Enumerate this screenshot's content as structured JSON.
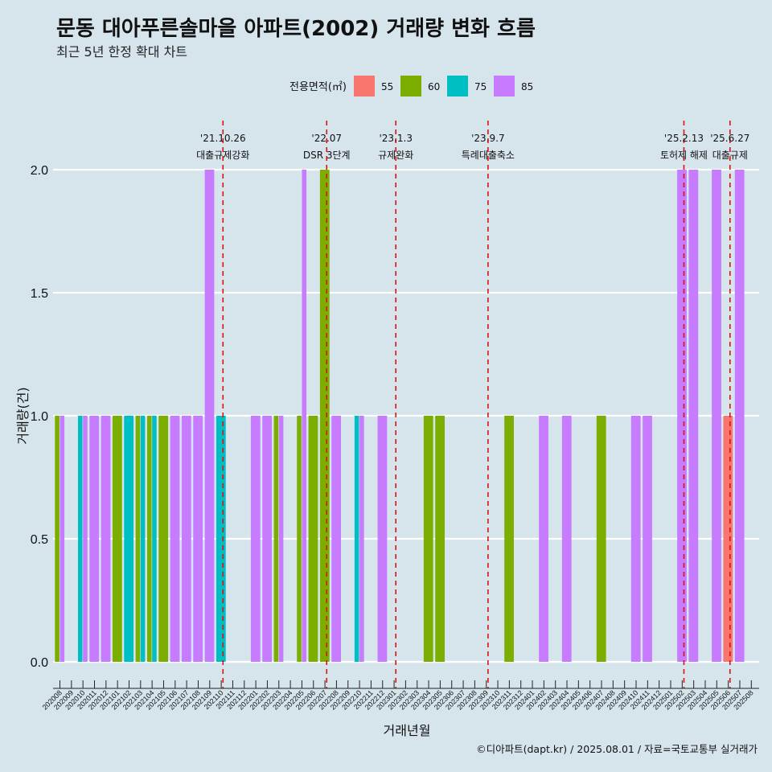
{
  "header": {
    "title": "문동 대아푸른솔마을 아파트(2002) 거래량 변화 흐름",
    "subtitle": "최근 5년 한정 확대 차트"
  },
  "caption": "©디아파트(dapt.kr) / 2025.08.01 / 자료=국토교통부 실거래가",
  "chart_data": {
    "type": "bar",
    "title": "문동 대아푸른솔마을 아파트(2002) 거래량 변화 흐름",
    "subtitle": "최근 5년 한정 확대 차트",
    "xlabel": "거래년월",
    "ylabel": "거래량(건)",
    "ylim": [
      0,
      2.15
    ],
    "y_ticks": [
      "0.0",
      "0.5",
      "1.0",
      "1.5",
      "2.0"
    ],
    "y_tick_values": [
      0,
      0.5,
      1,
      1.5,
      2
    ],
    "grid": "horizontal",
    "legend": {
      "title": "전용면적(㎡)",
      "position": "top",
      "entries": [
        {
          "name": "55",
          "color": "#F8766D"
        },
        {
          "name": "60",
          "color": "#7CAE00"
        },
        {
          "name": "75",
          "color": "#00BFC4"
        },
        {
          "name": "85",
          "color": "#C77CFF"
        }
      ]
    },
    "categories": [
      "202008",
      "202009",
      "202010",
      "202011",
      "202012",
      "202101",
      "202102",
      "202103",
      "202104",
      "202105",
      "202106",
      "202107",
      "202108",
      "202109",
      "202110",
      "202111",
      "202112",
      "202201",
      "202202",
      "202203",
      "202204",
      "202205",
      "202206",
      "202207",
      "202208",
      "202209",
      "202210",
      "202211",
      "202212",
      "202301",
      "202302",
      "202303",
      "202304",
      "202305",
      "202306",
      "202307",
      "202308",
      "202309",
      "202310",
      "202311",
      "202312",
      "202401",
      "202402",
      "202403",
      "202404",
      "202405",
      "202406",
      "202407",
      "202408",
      "202409",
      "202410",
      "202411",
      "202412",
      "202501",
      "202502",
      "202503",
      "202504",
      "202505",
      "202506",
      "202507",
      "202508"
    ],
    "series": [
      {
        "name": "55",
        "color": "#F8766D",
        "values": [
          0,
          0,
          0,
          0,
          0,
          0,
          0,
          0,
          0,
          0,
          0,
          0,
          0,
          0,
          0,
          0,
          0,
          0,
          0,
          0,
          0,
          0,
          0,
          0,
          0,
          0,
          0,
          0,
          0,
          0,
          0,
          0,
          0,
          0,
          0,
          0,
          0,
          0,
          0,
          0,
          0,
          0,
          0,
          0,
          0,
          0,
          0,
          0,
          0,
          0,
          0,
          0,
          0,
          0,
          0,
          0,
          0,
          0,
          1,
          0,
          0
        ]
      },
      {
        "name": "60",
        "color": "#7CAE00",
        "values": [
          1,
          0,
          0,
          0,
          0,
          1,
          0,
          1,
          1,
          1,
          0,
          0,
          0,
          0,
          0,
          0,
          0,
          0,
          0,
          1,
          0,
          1,
          1,
          2,
          0,
          0,
          0,
          0,
          0,
          0,
          0,
          0,
          1,
          1,
          0,
          0,
          0,
          0,
          0,
          1,
          0,
          0,
          0,
          0,
          0,
          0,
          0,
          1,
          0,
          0,
          0,
          0,
          0,
          0,
          0,
          0,
          0,
          0,
          0,
          0,
          0
        ]
      },
      {
        "name": "75",
        "color": "#00BFC4",
        "values": [
          0,
          0,
          1,
          0,
          0,
          0,
          1,
          1,
          1,
          0,
          0,
          0,
          0,
          0,
          1,
          0,
          0,
          0,
          0,
          0,
          0,
          0,
          0,
          0,
          0,
          0,
          1,
          0,
          0,
          0,
          0,
          0,
          0,
          0,
          0,
          0,
          0,
          0,
          0,
          0,
          0,
          0,
          0,
          0,
          0,
          0,
          0,
          0,
          0,
          0,
          0,
          0,
          0,
          0,
          0,
          0,
          0,
          0,
          0,
          0,
          0
        ]
      },
      {
        "name": "85",
        "color": "#C77CFF",
        "values": [
          1,
          0,
          1,
          1,
          1,
          0,
          0,
          0,
          0,
          0,
          1,
          1,
          1,
          2,
          0,
          0,
          0,
          1,
          1,
          1,
          0,
          2,
          0,
          0,
          1,
          0,
          1,
          0,
          1,
          0,
          0,
          0,
          0,
          0,
          0,
          0,
          0,
          0,
          0,
          0,
          0,
          0,
          1,
          0,
          1,
          0,
          0,
          0,
          0,
          0,
          1,
          1,
          0,
          0,
          2,
          2,
          0,
          2,
          0,
          2,
          0
        ]
      }
    ],
    "events": [
      {
        "date": "'21.10.26",
        "label": "대출규제강화",
        "at": 14.15
      },
      {
        "date": "'22.07",
        "label": "DSR 3단계",
        "at": 23.15
      },
      {
        "date": "'23.1.3",
        "label": "규제완화",
        "at": 29.15
      },
      {
        "date": "'23.9.7",
        "label": "특례대출축소",
        "at": 37.15
      },
      {
        "date": "'25.2.13",
        "label": "토허제 해제",
        "at": 54.15
      },
      {
        "date": "'25.6.27",
        "label": "대출규제",
        "at": 58.15
      }
    ]
  }
}
